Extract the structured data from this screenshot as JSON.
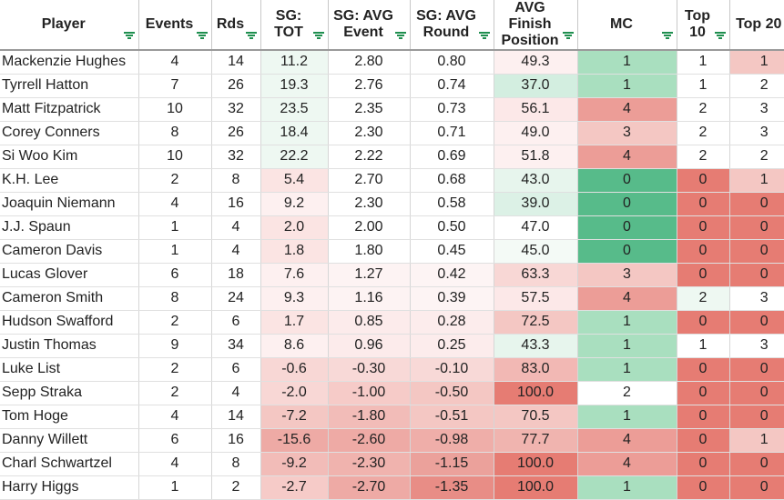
{
  "columns": [
    "Player",
    "Events",
    "Rds",
    "SG: TOT",
    "SG: AVG Event",
    "SG: AVG Round",
    "AVG Finish Position",
    "MC",
    "Top 10",
    "Top 20"
  ],
  "rows": [
    [
      "Mackenzie Hughes",
      "4",
      "14",
      "11.2",
      "2.80",
      "0.80",
      "49.3",
      "1",
      "1",
      "1"
    ],
    [
      "Tyrrell Hatton",
      "7",
      "26",
      "19.3",
      "2.76",
      "0.74",
      "37.0",
      "1",
      "1",
      "2"
    ],
    [
      "Matt Fitzpatrick",
      "10",
      "32",
      "23.5",
      "2.35",
      "0.73",
      "56.1",
      "4",
      "2",
      "3"
    ],
    [
      "Corey Conners",
      "8",
      "26",
      "18.4",
      "2.30",
      "0.71",
      "49.0",
      "3",
      "2",
      "3"
    ],
    [
      "Si Woo Kim",
      "10",
      "32",
      "22.2",
      "2.22",
      "0.69",
      "51.8",
      "4",
      "2",
      "2"
    ],
    [
      "K.H. Lee",
      "2",
      "8",
      "5.4",
      "2.70",
      "0.68",
      "43.0",
      "0",
      "0",
      "1"
    ],
    [
      "Joaquin Niemann",
      "4",
      "16",
      "9.2",
      "2.30",
      "0.58",
      "39.0",
      "0",
      "0",
      "0"
    ],
    [
      "J.J. Spaun",
      "1",
      "4",
      "2.0",
      "2.00",
      "0.50",
      "47.0",
      "0",
      "0",
      "0"
    ],
    [
      "Cameron Davis",
      "1",
      "4",
      "1.8",
      "1.80",
      "0.45",
      "45.0",
      "0",
      "0",
      "0"
    ],
    [
      "Lucas Glover",
      "6",
      "18",
      "7.6",
      "1.27",
      "0.42",
      "63.3",
      "3",
      "0",
      "0"
    ],
    [
      "Cameron Smith",
      "8",
      "24",
      "9.3",
      "1.16",
      "0.39",
      "57.5",
      "4",
      "2",
      "3"
    ],
    [
      "Hudson Swafford",
      "2",
      "6",
      "1.7",
      "0.85",
      "0.28",
      "72.5",
      "1",
      "0",
      "0"
    ],
    [
      "Justin Thomas",
      "9",
      "34",
      "8.6",
      "0.96",
      "0.25",
      "43.3",
      "1",
      "1",
      "3"
    ],
    [
      "Luke List",
      "2",
      "6",
      "-0.6",
      "-0.30",
      "-0.10",
      "83.0",
      "1",
      "0",
      "0"
    ],
    [
      "Sepp Straka",
      "2",
      "4",
      "-2.0",
      "-1.00",
      "-0.50",
      "100.0",
      "2",
      "0",
      "0"
    ],
    [
      "Tom Hoge",
      "4",
      "14",
      "-7.2",
      "-1.80",
      "-0.51",
      "70.5",
      "1",
      "0",
      "0"
    ],
    [
      "Danny Willett",
      "6",
      "16",
      "-15.6",
      "-2.60",
      "-0.98",
      "77.7",
      "4",
      "0",
      "1"
    ],
    [
      "Charl Schwartzel",
      "4",
      "8",
      "-9.2",
      "-2.30",
      "-1.15",
      "100.0",
      "4",
      "0",
      "0"
    ],
    [
      "Harry Higgs",
      "1",
      "2",
      "-2.7",
      "-2.70",
      "-1.35",
      "100.0",
      "1",
      "0",
      "0"
    ]
  ],
  "cell_colors": [
    [
      "#ffffff",
      "#ffffff",
      "#ffffff",
      "#eef8f2",
      "#ffffff",
      "#ffffff",
      "#fdf0f0",
      "#a9dfbf",
      "#ffffff",
      "#f4c7c3"
    ],
    [
      "#ffffff",
      "#ffffff",
      "#ffffff",
      "#eef8f2",
      "#ffffff",
      "#ffffff",
      "#d3eee0",
      "#a9dfbf",
      "#ffffff",
      "#ffffff"
    ],
    [
      "#ffffff",
      "#ffffff",
      "#ffffff",
      "#eef8f2",
      "#ffffff",
      "#ffffff",
      "#fce8e8",
      "#ec9d97",
      "#ffffff",
      "#ffffff"
    ],
    [
      "#ffffff",
      "#ffffff",
      "#ffffff",
      "#eef8f2",
      "#ffffff",
      "#ffffff",
      "#fdf0f0",
      "#f4c7c3",
      "#ffffff",
      "#ffffff"
    ],
    [
      "#ffffff",
      "#ffffff",
      "#ffffff",
      "#eef8f2",
      "#ffffff",
      "#ffffff",
      "#fdf0f0",
      "#ec9d97",
      "#ffffff",
      "#ffffff"
    ],
    [
      "#ffffff",
      "#ffffff",
      "#ffffff",
      "#fbe4e3",
      "#ffffff",
      "#ffffff",
      "#e7f5ed",
      "#57bb8a",
      "#e67c73",
      "#f4c7c3"
    ],
    [
      "#ffffff",
      "#ffffff",
      "#ffffff",
      "#fdf0f0",
      "#ffffff",
      "#ffffff",
      "#dcf1e6",
      "#57bb8a",
      "#e67c73",
      "#e67c73"
    ],
    [
      "#ffffff",
      "#ffffff",
      "#ffffff",
      "#fbe4e3",
      "#ffffff",
      "#ffffff",
      "#ffffff",
      "#57bb8a",
      "#e67c73",
      "#e67c73"
    ],
    [
      "#ffffff",
      "#ffffff",
      "#ffffff",
      "#fbe4e3",
      "#ffffff",
      "#ffffff",
      "#f4faf6",
      "#57bb8a",
      "#e67c73",
      "#e67c73"
    ],
    [
      "#ffffff",
      "#ffffff",
      "#ffffff",
      "#fdf0f0",
      "#fdf3f3",
      "#fdf4f4",
      "#f8d7d5",
      "#f4c7c3",
      "#e67c73",
      "#e67c73"
    ],
    [
      "#ffffff",
      "#ffffff",
      "#ffffff",
      "#fdf0f0",
      "#fdf3f3",
      "#fdf4f4",
      "#fce8e8",
      "#ec9d97",
      "#eef8f2",
      "#ffffff"
    ],
    [
      "#ffffff",
      "#ffffff",
      "#ffffff",
      "#fbe4e3",
      "#fcebeb",
      "#fcecec",
      "#f4c7c3",
      "#a9dfbf",
      "#e67c73",
      "#e67c73"
    ],
    [
      "#ffffff",
      "#ffffff",
      "#ffffff",
      "#fdf0f0",
      "#fcebeb",
      "#fcecec",
      "#e7f5ed",
      "#a9dfbf",
      "#ffffff",
      "#ffffff"
    ],
    [
      "#ffffff",
      "#ffffff",
      "#ffffff",
      "#f8d7d5",
      "#f8d9d7",
      "#f8d9d7",
      "#f2b8b4",
      "#a9dfbf",
      "#e67c73",
      "#e67c73"
    ],
    [
      "#ffffff",
      "#ffffff",
      "#ffffff",
      "#f8d7d5",
      "#f6cbc8",
      "#f4c7c3",
      "#e67c73",
      "#ffffff",
      "#e67c73",
      "#e67c73"
    ],
    [
      "#ffffff",
      "#ffffff",
      "#ffffff",
      "#f4c7c3",
      "#f2bcb8",
      "#f4c7c3",
      "#f4c7c3",
      "#a9dfbf",
      "#e67c73",
      "#e67c73"
    ],
    [
      "#ffffff",
      "#ffffff",
      "#ffffff",
      "#eeaaa5",
      "#eeaaa5",
      "#efaea9",
      "#f0b4af",
      "#ec9d97",
      "#e67c73",
      "#f4c7c3"
    ],
    [
      "#ffffff",
      "#ffffff",
      "#ffffff",
      "#f2bcb8",
      "#f0b3ae",
      "#eba19b",
      "#e67c73",
      "#ec9d97",
      "#e67c73",
      "#e67c73"
    ],
    [
      "#ffffff",
      "#ffffff",
      "#ffffff",
      "#f6cbc8",
      "#eeaaa5",
      "#e88d86",
      "#e67c73",
      "#a9dfbf",
      "#e67c73",
      "#e67c73"
    ]
  ]
}
